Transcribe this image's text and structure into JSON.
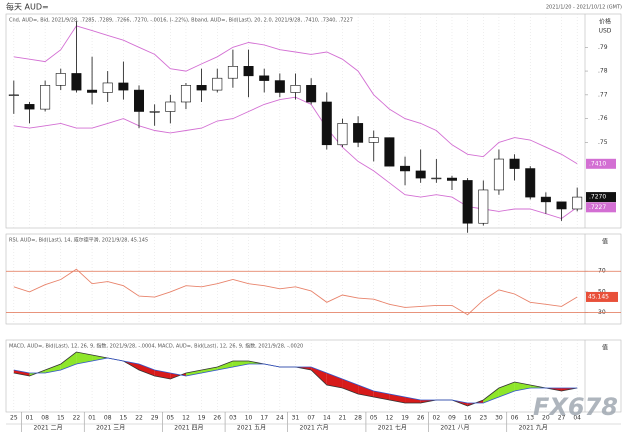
{
  "header": {
    "title": "每天 AUD=",
    "date_range": "2021/1/20 - 2021/10/12 (GMT)",
    "watermark": "FX678"
  },
  "chart_data": [
    {
      "type": "candlestick",
      "legend_text": "Cnd, AUD=, Bid, 2021/9/28, .7285, .7289, .7266, .7270, -.0016, (-.22%), Bband, AUD=, Bid(Last), 20, 2.0, 2021/9/28, .7410, .7340, .7227",
      "y_label": "价格",
      "y_unit": "USD",
      "categories": [
        "25",
        "01",
        "08",
        "15",
        "22",
        "01",
        "08",
        "15",
        "22",
        "29",
        "05",
        "12",
        "19",
        "26",
        "03",
        "10",
        "17",
        "24",
        "31",
        "07",
        "14",
        "21",
        "28",
        "05",
        "12",
        "19",
        "26",
        "02",
        "09",
        "16",
        "23",
        "30",
        "06",
        "13",
        "20",
        "27",
        "04"
      ],
      "month_labels": [
        null,
        "2021 二月",
        null,
        null,
        null,
        "2021 三月",
        null,
        null,
        null,
        null,
        "2021 四月",
        null,
        null,
        null,
        "2021 五月",
        null,
        null,
        null,
        "2021 六月",
        null,
        null,
        null,
        null,
        "2021 七月",
        null,
        null,
        null,
        "2021 八月",
        null,
        null,
        null,
        null,
        "2021 九月",
        null,
        null,
        null,
        null
      ],
      "open": [
        0.77,
        0.766,
        0.764,
        0.774,
        0.779,
        0.772,
        0.771,
        0.775,
        0.772,
        0.763,
        0.763,
        0.767,
        0.774,
        0.772,
        0.777,
        0.782,
        0.778,
        0.776,
        0.771,
        0.774,
        0.767,
        0.749,
        0.758,
        0.75,
        0.752,
        0.74,
        0.738,
        0.735,
        0.735,
        0.734,
        0.716,
        0.73,
        0.743,
        0.739,
        0.727,
        0.725,
        0.722
      ],
      "high": [
        0.776,
        0.767,
        0.776,
        0.781,
        0.801,
        0.786,
        0.78,
        0.784,
        0.774,
        0.766,
        0.77,
        0.775,
        0.781,
        0.781,
        0.789,
        0.789,
        0.781,
        0.779,
        0.779,
        0.777,
        0.771,
        0.76,
        0.761,
        0.755,
        0.752,
        0.744,
        0.747,
        0.743,
        0.736,
        0.735,
        0.734,
        0.747,
        0.745,
        0.74,
        0.729,
        0.725,
        0.731
      ],
      "low": [
        0.762,
        0.758,
        0.763,
        0.772,
        0.771,
        0.766,
        0.767,
        0.768,
        0.756,
        0.757,
        0.758,
        0.764,
        0.767,
        0.771,
        0.773,
        0.769,
        0.771,
        0.769,
        0.768,
        0.766,
        0.747,
        0.748,
        0.748,
        0.742,
        0.74,
        0.732,
        0.733,
        0.733,
        0.73,
        0.712,
        0.715,
        0.728,
        0.734,
        0.726,
        0.72,
        0.717,
        0.721
      ],
      "close": [
        0.77,
        0.764,
        0.774,
        0.779,
        0.772,
        0.771,
        0.775,
        0.772,
        0.763,
        0.763,
        0.767,
        0.774,
        0.772,
        0.777,
        0.782,
        0.778,
        0.776,
        0.771,
        0.774,
        0.767,
        0.749,
        0.758,
        0.75,
        0.752,
        0.74,
        0.738,
        0.735,
        0.735,
        0.734,
        0.716,
        0.73,
        0.743,
        0.739,
        0.727,
        0.725,
        0.722,
        0.727
      ],
      "up_color": "#ffffff",
      "down_color": "#111111",
      "bands": {
        "color": "#d36fd3",
        "upper": [
          0.786,
          0.785,
          0.784,
          0.789,
          0.799,
          0.797,
          0.795,
          0.793,
          0.79,
          0.787,
          0.781,
          0.78,
          0.783,
          0.786,
          0.79,
          0.792,
          0.791,
          0.789,
          0.788,
          0.787,
          0.788,
          0.785,
          0.78,
          0.77,
          0.764,
          0.76,
          0.758,
          0.755,
          0.749,
          0.745,
          0.744,
          0.75,
          0.752,
          0.751,
          0.748,
          0.745,
          0.741
        ],
        "lower": [
          0.757,
          0.756,
          0.757,
          0.758,
          0.756,
          0.756,
          0.758,
          0.76,
          0.757,
          0.755,
          0.754,
          0.755,
          0.756,
          0.759,
          0.76,
          0.763,
          0.766,
          0.768,
          0.769,
          0.766,
          0.756,
          0.748,
          0.742,
          0.738,
          0.733,
          0.728,
          0.727,
          0.728,
          0.727,
          0.723,
          0.722,
          0.721,
          0.722,
          0.722,
          0.72,
          0.718,
          0.7227
        ]
      },
      "ylim": [
        0.714,
        0.804
      ],
      "yticks": [
        {
          "value": 0.75,
          "label": ".75"
        },
        {
          "value": 0.76,
          "label": ".76"
        },
        {
          "value": 0.77,
          "label": ".77"
        },
        {
          "value": 0.78,
          "label": ".78"
        },
        {
          "value": 0.79,
          "label": ".79"
        }
      ],
      "value_tags": [
        {
          "value": 0.741,
          "label": ".7410",
          "color": "#d36fd3"
        },
        {
          "value": 0.727,
          "label": ".7270",
          "color": "#111111"
        },
        {
          "value": 0.7227,
          "label": ".7227",
          "color": "#d36fd3"
        }
      ],
      "grid": true
    },
    {
      "type": "line",
      "legend_text": "RSI, AUD=, Bid(Last), 14, 威尔德平滑, 2021/9/28, 45.145",
      "y_label": "值",
      "values": [
        55,
        50,
        57,
        62,
        72,
        58,
        60,
        56,
        46,
        45,
        50,
        56,
        55,
        58,
        62,
        58,
        56,
        53,
        55,
        51,
        40,
        47,
        44,
        43,
        38,
        35,
        36,
        37,
        37,
        28,
        42,
        52,
        48,
        40,
        38,
        36,
        45.145
      ],
      "color": "#e8836b",
      "ylim": [
        19,
        106
      ],
      "yticks": [
        30,
        50,
        70
      ],
      "reference_lines": [
        30,
        70
      ],
      "value_tag": {
        "value": 45.145,
        "label": "45.145"
      }
    },
    {
      "type": "macd",
      "legend_text": "MACD, AUD=, Bid(Last), 12, 26, 9, 指数, 2021/9/28, -.0004, MACD, AUD=, Bid(Last), 12, 26, 9, 指数, 2021/9/28, -.0020",
      "y_label": "值",
      "series": [
        {
          "color": "#333333",
          "values": [
            0.001,
            0.0,
            0.002,
            0.004,
            0.008,
            0.007,
            0.006,
            0.005,
            0.002,
            0.0,
            -0.001,
            0.001,
            0.002,
            0.003,
            0.005,
            0.005,
            0.004,
            0.003,
            0.003,
            0.002,
            -0.003,
            -0.004,
            -0.006,
            -0.007,
            -0.008,
            -0.009,
            -0.009,
            -0.008,
            -0.008,
            -0.01,
            -0.008,
            -0.004,
            -0.002,
            -0.003,
            -0.004,
            -0.005,
            -0.004
          ]
        },
        {
          "color": "#3355cc",
          "values": [
            0.002,
            0.001,
            0.001,
            0.002,
            0.004,
            0.005,
            0.006,
            0.005,
            0.004,
            0.002,
            0.001,
            0.0,
            0.001,
            0.002,
            0.003,
            0.004,
            0.004,
            0.003,
            0.003,
            0.003,
            0.001,
            -0.001,
            -0.003,
            -0.005,
            -0.006,
            -0.007,
            -0.008,
            -0.008,
            -0.008,
            -0.009,
            -0.009,
            -0.007,
            -0.005,
            -0.004,
            -0.004,
            -0.004,
            -0.004
          ]
        }
      ],
      "up_color": "#8ee62a",
      "down_color": "#d71a1a",
      "ylim": [
        -0.012,
        0.012
      ]
    }
  ]
}
